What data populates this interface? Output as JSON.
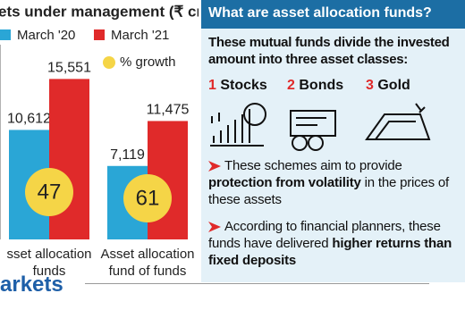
{
  "chart_data": {
    "type": "bar",
    "title": "ets under management (₹ cr)",
    "categories": [
      "sset allocation funds",
      "Asset allocation fund of funds"
    ],
    "series": [
      {
        "name": "March '20",
        "color": "#2aa6d6",
        "values": [
          10612,
          7119
        ],
        "value_labels": [
          "10,612",
          "7,119"
        ]
      },
      {
        "name": "March '21",
        "color": "#e02a2a",
        "values": [
          15551,
          11475
        ],
        "value_labels": [
          "15,551",
          "11,475"
        ]
      }
    ],
    "growth": {
      "name": "% growth",
      "color": "#f5d547",
      "values": [
        47,
        61
      ]
    },
    "ylim": [
      0,
      20000
    ]
  },
  "panel": {
    "title": "What are asset allocation funds?",
    "intro": "These mutual funds divide the invested amount into three asset classes:",
    "asset_classes": [
      {
        "number": "1",
        "name": "Stocks"
      },
      {
        "number": "2",
        "name": "Bonds"
      },
      {
        "number": "3",
        "name": "Gold"
      }
    ],
    "points": [
      [
        "These schemes aim to provide ",
        "protection from volatility",
        " in the prices of these assets"
      ],
      [
        "According to financial planners, these funds have delivered ",
        "higher returns than fixed deposits",
        ""
      ]
    ]
  },
  "logo": "arkets"
}
